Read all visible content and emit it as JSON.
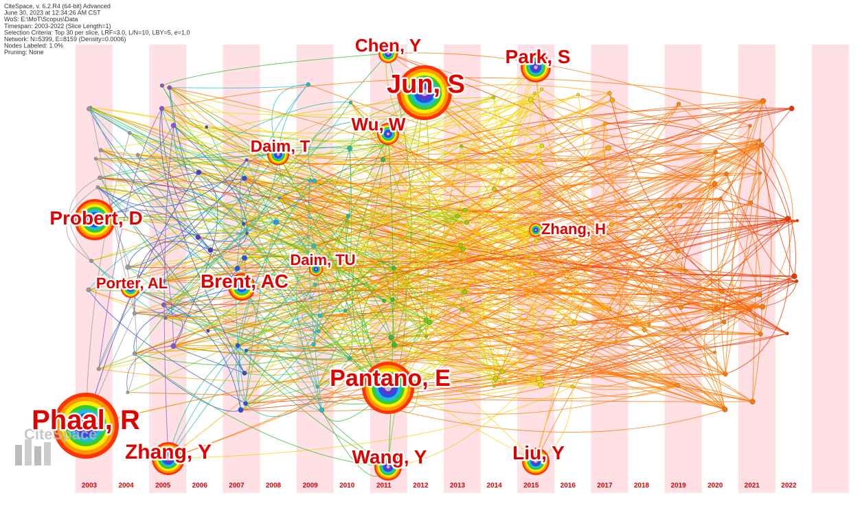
{
  "header": {
    "lines": [
      "CiteSpace, v. 6.2.R4 (64-bit) Advanced",
      "June 30, 2023 at 12:34:26 AM CST",
      "WoS: E:\\MoT\\Scopus\\Data",
      "Timespan: 2003-2022 (Slice Length=1)",
      "Selection Criteria: Top 30 per slice, LRF=3.0, L/N=10, LBY=5, e=1.0",
      "Network: N=5399, E=8159 (Density=0.0006)",
      "Nodes Labeled: 1.0%",
      "Pruning: None"
    ]
  },
  "years": [
    "2003",
    "2004",
    "2005",
    "2006",
    "2007",
    "2008",
    "2009",
    "2010",
    "2011",
    "2012",
    "2013",
    "2014",
    "2015",
    "2016",
    "2017",
    "2018",
    "2019",
    "2020",
    "2021",
    "2022"
  ],
  "nodes": [
    {
      "label": "Chen, Y"
    },
    {
      "label": "Park, S"
    },
    {
      "label": "Jun, S"
    },
    {
      "label": "Wu, W"
    },
    {
      "label": "Daim, T"
    },
    {
      "label": "Probert, D"
    },
    {
      "label": "Zhang, H"
    },
    {
      "label": "Daim, TU"
    },
    {
      "label": "Porter, AL"
    },
    {
      "label": "Brent, AC"
    },
    {
      "label": "Pantano, E"
    },
    {
      "label": "Phaal, R"
    },
    {
      "label": "Zhang, Y"
    },
    {
      "label": "Wang, Y"
    },
    {
      "label": "Liu, Y"
    }
  ],
  "watermark": "CiteSpace"
}
